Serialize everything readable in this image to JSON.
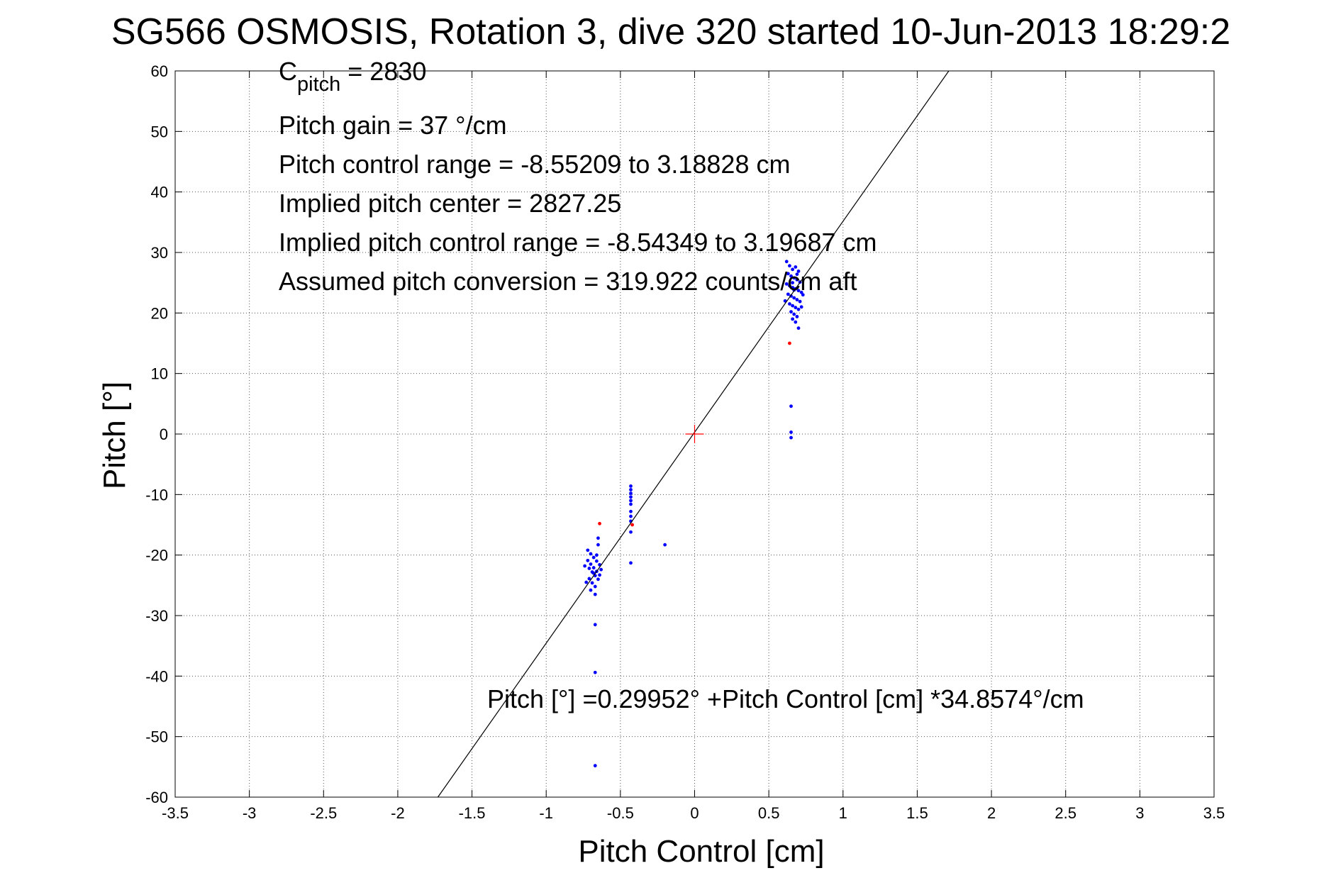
{
  "chart_data": {
    "type": "scatter",
    "title": "SG566 OSMOSIS, Rotation 3, dive 320 started 10-Jun-2013 18:29:2",
    "xlabel": "Pitch Control [cm]",
    "ylabel": "Pitch [°]",
    "xlim": [
      -3.5,
      3.5
    ],
    "ylim": [
      -60,
      60
    ],
    "xticks": [
      -3.5,
      -3,
      -2.5,
      -2,
      -1.5,
      -1,
      -0.5,
      0,
      0.5,
      1,
      1.5,
      2,
      2.5,
      3,
      3.5
    ],
    "xtick_labels": [
      "-3.5",
      "-3",
      "-2.5",
      "-2",
      "-1.5",
      "-1",
      "-0.5",
      "0",
      "0.5",
      "1",
      "1.5",
      "2",
      "2.5",
      "3",
      "3.5"
    ],
    "yticks": [
      60,
      50,
      40,
      30,
      20,
      10,
      0,
      -10,
      -20,
      -30,
      -40,
      -50,
      -60
    ],
    "ytick_labels": [
      "60",
      "50",
      "40",
      "30",
      "20",
      "10",
      "0",
      "-10",
      "-20",
      "-30",
      "-40",
      "-50",
      "-60"
    ],
    "grid": true,
    "colors": {
      "primary": "#0000ff",
      "excluded": "#ff0000",
      "fit": "#000000",
      "center": "#ff0000"
    },
    "annotations": {
      "c_pitch_main": "C",
      "c_pitch_sub": "pitch",
      "c_pitch_value": " = 2830",
      "lines": [
        "Pitch gain = 37 °/cm",
        "Pitch control range = -8.55209 to 3.18828 cm",
        "Implied pitch center = 2827.25",
        "Implied pitch control range = -8.54349 to 3.19687 cm",
        "Assumed pitch conversion = 319.922 counts/cm aft"
      ],
      "fit_equation": "Pitch [°] =0.29952° +Pitch Control [cm] *34.8574°/cm"
    },
    "fit": {
      "intercept": 0.29952,
      "slope": 34.8574
    },
    "center_marker": [
      0,
      0
    ],
    "series": [
      {
        "color": "#0000ff",
        "points": [
          [
            0.62,
            28.5
          ],
          [
            0.64,
            27.8
          ],
          [
            0.66,
            27.2
          ],
          [
            0.68,
            27.6
          ],
          [
            0.7,
            26.9
          ],
          [
            0.63,
            26.5
          ],
          [
            0.65,
            26.1
          ],
          [
            0.67,
            25.8
          ],
          [
            0.69,
            25.5
          ],
          [
            0.71,
            25.1
          ],
          [
            0.62,
            24.8
          ],
          [
            0.64,
            24.5
          ],
          [
            0.66,
            24.2
          ],
          [
            0.68,
            24.0
          ],
          [
            0.7,
            23.7
          ],
          [
            0.72,
            23.4
          ],
          [
            0.63,
            23.1
          ],
          [
            0.65,
            22.8
          ],
          [
            0.67,
            22.5
          ],
          [
            0.69,
            22.2
          ],
          [
            0.71,
            21.9
          ],
          [
            0.64,
            21.5
          ],
          [
            0.66,
            21.2
          ],
          [
            0.68,
            20.9
          ],
          [
            0.7,
            20.6
          ],
          [
            0.65,
            20.2
          ],
          [
            0.67,
            19.8
          ],
          [
            0.69,
            19.4
          ],
          [
            0.66,
            19.0
          ],
          [
            0.68,
            18.5
          ],
          [
            0.7,
            17.5
          ],
          [
            0.73,
            23.0
          ],
          [
            0.61,
            22.0
          ],
          [
            0.66,
            25.0
          ],
          [
            0.69,
            26.4
          ],
          [
            0.67,
            23.8
          ],
          [
            0.72,
            21.0
          ],
          [
            0.65,
            4.6
          ],
          [
            0.65,
            0.3
          ],
          [
            0.65,
            -0.6
          ],
          [
            -0.72,
            -19.2
          ],
          [
            -0.7,
            -19.8
          ],
          [
            -0.68,
            -20.4
          ],
          [
            -0.66,
            -21.0
          ],
          [
            -0.64,
            -21.6
          ],
          [
            -0.71,
            -22.2
          ],
          [
            -0.69,
            -22.8
          ],
          [
            -0.67,
            -23.4
          ],
          [
            -0.65,
            -24.0
          ],
          [
            -0.73,
            -24.5
          ],
          [
            -0.72,
            -20.9
          ],
          [
            -0.7,
            -21.5
          ],
          [
            -0.68,
            -22.1
          ],
          [
            -0.66,
            -22.7
          ],
          [
            -0.64,
            -23.3
          ],
          [
            -0.71,
            -23.9
          ],
          [
            -0.69,
            -24.6
          ],
          [
            -0.67,
            -25.2
          ],
          [
            -0.74,
            -21.8
          ],
          [
            -0.63,
            -22.4
          ],
          [
            -0.7,
            -25.8
          ],
          [
            -0.68,
            -23.0
          ],
          [
            -0.66,
            -20.0
          ],
          [
            -0.65,
            -18.3
          ],
          [
            -0.65,
            -17.2
          ],
          [
            -0.67,
            -26.5
          ],
          [
            -0.67,
            -31.5
          ],
          [
            -0.67,
            -39.4
          ],
          [
            -0.67,
            -54.8
          ],
          [
            -0.43,
            -8.6
          ],
          [
            -0.43,
            -9.2
          ],
          [
            -0.43,
            -9.8
          ],
          [
            -0.43,
            -10.4
          ],
          [
            -0.43,
            -11.0
          ],
          [
            -0.43,
            -11.6
          ],
          [
            -0.43,
            -12.8
          ],
          [
            -0.43,
            -13.6
          ],
          [
            -0.43,
            -14.4
          ],
          [
            -0.43,
            -16.2
          ],
          [
            -0.43,
            -21.3
          ],
          [
            -0.2,
            -18.3
          ]
        ]
      },
      {
        "color": "#ff0000",
        "points": [
          [
            0.64,
            15.0
          ],
          [
            -0.64,
            -14.8
          ],
          [
            -0.42,
            -15.0
          ]
        ]
      }
    ]
  }
}
